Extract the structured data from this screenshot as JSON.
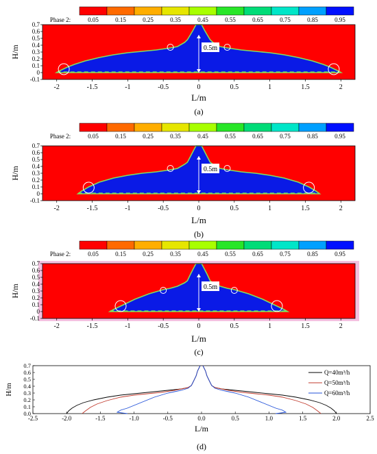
{
  "figure": {
    "captions": [
      "(a)",
      "(b)",
      "(c)",
      "(d)"
    ]
  },
  "colorbar": {
    "title": "Phase 2:",
    "labels": [
      "0.05",
      "0.15",
      "0.25",
      "0.35",
      "0.45",
      "0.55",
      "0.65",
      "0.75",
      "0.85",
      "0.95"
    ],
    "colors": [
      "#ff0000",
      "#ff6a00",
      "#ffae00",
      "#e6e600",
      "#a8ff00",
      "#28e628",
      "#00dc78",
      "#00e6c8",
      "#00a0ff",
      "#0010ff"
    ]
  },
  "colors": {
    "air": "#ff0000",
    "water": "#0a1ae6",
    "interface": "#7fe060",
    "circle": "#ffffff",
    "border_c": "#f4c0e0"
  },
  "annotation": "0.5m",
  "chart_data": [
    {
      "type": "heatmap",
      "caption": "(a)",
      "xlabel": "L/m",
      "ylabel": "H/m",
      "xlim": [
        -2.2,
        2.2
      ],
      "ylim": [
        -0.1,
        0.7
      ],
      "xticks": [
        "-2",
        "-1.5",
        "-1",
        "-0.5",
        "0",
        "0.5",
        "1",
        "1.5",
        "2"
      ],
      "xtick_values": [
        -2,
        -1.5,
        -1,
        -0.5,
        0,
        0.5,
        1,
        1.5,
        2
      ],
      "yticks": [
        "-0.1",
        "0",
        "0.1",
        "0.2",
        "0.3",
        "0.4",
        "0.5",
        "0.6",
        "0.7"
      ],
      "ytick_values": [
        -0.1,
        0,
        0.1,
        0.2,
        0.3,
        0.4,
        0.5,
        0.6,
        0.7
      ],
      "profile_x": [
        0.0,
        0.04,
        0.08,
        0.12,
        0.16,
        0.2,
        0.3,
        0.4,
        0.6,
        0.8,
        1.0,
        1.2,
        1.4,
        1.6,
        1.75,
        1.85,
        1.95,
        2.0
      ],
      "profile_h": [
        0.7,
        0.7,
        0.62,
        0.55,
        0.48,
        0.44,
        0.38,
        0.36,
        0.33,
        0.31,
        0.29,
        0.26,
        0.22,
        0.17,
        0.12,
        0.08,
        0.03,
        0.0
      ],
      "circles_x": [
        -1.9,
        -0.4,
        0.4,
        1.9
      ],
      "circles_h": [
        0.05,
        0.37,
        0.37,
        0.05
      ]
    },
    {
      "type": "heatmap",
      "caption": "(b)",
      "xlabel": "L/m",
      "ylabel": "H/m",
      "xlim": [
        -2.2,
        2.2
      ],
      "ylim": [
        -0.1,
        0.7
      ],
      "xticks": [
        "-2",
        "-1.5",
        "-1",
        "-0.5",
        "0",
        "0.5",
        "1",
        "1.5",
        "2"
      ],
      "xtick_values": [
        -2,
        -1.5,
        -1,
        -0.5,
        0,
        0.5,
        1,
        1.5,
        2
      ],
      "yticks": [
        "-0.1",
        "0",
        "0.1",
        "0.2",
        "0.3",
        "0.4",
        "0.5",
        "0.6",
        "0.7"
      ],
      "ytick_values": [
        -0.1,
        0,
        0.1,
        0.2,
        0.3,
        0.4,
        0.5,
        0.6,
        0.7
      ],
      "profile_x": [
        0.0,
        0.04,
        0.08,
        0.12,
        0.16,
        0.2,
        0.3,
        0.4,
        0.6,
        0.8,
        1.0,
        1.2,
        1.4,
        1.55,
        1.65,
        1.7
      ],
      "profile_h": [
        0.7,
        0.7,
        0.62,
        0.54,
        0.46,
        0.43,
        0.37,
        0.35,
        0.32,
        0.3,
        0.27,
        0.23,
        0.17,
        0.1,
        0.04,
        0.0
      ],
      "circles_x": [
        -1.55,
        -0.4,
        0.4,
        1.55
      ],
      "circles_h": [
        0.09,
        0.37,
        0.37,
        0.09
      ]
    },
    {
      "type": "heatmap",
      "caption": "(c)",
      "xlabel": "L/m",
      "ylabel": "H/m",
      "xlim": [
        -2.2,
        2.2
      ],
      "ylim": [
        -0.1,
        0.7
      ],
      "xticks": [
        "-2",
        "-1.5",
        "-1",
        "-0.5",
        "0",
        "0.5",
        "1",
        "1.5",
        "2"
      ],
      "xtick_values": [
        -2,
        -1.5,
        -1,
        -0.5,
        0,
        0.5,
        1,
        1.5,
        2
      ],
      "yticks": [
        "-0.1",
        "0",
        "0.1",
        "0.2",
        "0.3",
        "0.4",
        "0.5",
        "0.6",
        "0.7"
      ],
      "ytick_values": [
        -0.1,
        0,
        0.1,
        0.2,
        0.3,
        0.4,
        0.5,
        0.6,
        0.7
      ],
      "profile_x": [
        0.0,
        0.04,
        0.08,
        0.12,
        0.16,
        0.2,
        0.3,
        0.4,
        0.5,
        0.6,
        0.7,
        0.8,
        0.9,
        1.0,
        1.1,
        1.2,
        1.25
      ],
      "profile_h": [
        0.7,
        0.7,
        0.62,
        0.54,
        0.45,
        0.42,
        0.37,
        0.34,
        0.32,
        0.29,
        0.26,
        0.22,
        0.18,
        0.13,
        0.08,
        0.03,
        0.0
      ],
      "circles_x": [
        -1.1,
        -0.5,
        0.5,
        1.1
      ],
      "circles_h": [
        0.08,
        0.31,
        0.31,
        0.08
      ]
    },
    {
      "type": "line",
      "caption": "(d)",
      "xlabel": "L/m",
      "ylabel": "H/m",
      "xlim": [
        -2.5,
        2.5
      ],
      "ylim": [
        0,
        0.7
      ],
      "xticks": [
        "-2.5",
        "-2.0",
        "-1.5",
        "-1.0",
        "-0.5",
        "0.0",
        "0.5",
        "1.0",
        "1.5",
        "2.0",
        "2.5"
      ],
      "xtick_values": [
        -2.5,
        -2.0,
        -1.5,
        -1.0,
        -0.5,
        0.0,
        0.5,
        1.0,
        1.5,
        2.0,
        2.5
      ],
      "yticks": [
        "0.0",
        "0.1",
        "0.2",
        "0.3",
        "0.4",
        "0.5",
        "0.6",
        "0.7"
      ],
      "ytick_values": [
        0,
        0.1,
        0.2,
        0.3,
        0.4,
        0.5,
        0.6,
        0.7
      ],
      "series": [
        {
          "name": "Q=40m³/h",
          "color": "#000000",
          "x": [
            0.02,
            0.06,
            0.08,
            0.12,
            0.15,
            0.2,
            0.3,
            0.4,
            0.6,
            0.8,
            1.0,
            1.2,
            1.4,
            1.6,
            1.75,
            1.85,
            1.92,
            1.97,
            2.0
          ],
          "y": [
            0.7,
            0.62,
            0.55,
            0.47,
            0.41,
            0.38,
            0.36,
            0.35,
            0.33,
            0.31,
            0.29,
            0.27,
            0.24,
            0.2,
            0.16,
            0.12,
            0.08,
            0.04,
            0.0
          ]
        },
        {
          "name": "Q=50m³/h",
          "color": "#c0392b",
          "x": [
            0.02,
            0.06,
            0.08,
            0.12,
            0.15,
            0.2,
            0.3,
            0.4,
            0.6,
            0.8,
            1.0,
            1.2,
            1.4,
            1.55,
            1.65,
            1.72,
            1.77
          ],
          "y": [
            0.7,
            0.62,
            0.55,
            0.47,
            0.41,
            0.38,
            0.36,
            0.34,
            0.31,
            0.29,
            0.27,
            0.24,
            0.19,
            0.14,
            0.09,
            0.04,
            0.0
          ]
        },
        {
          "name": "Q=60m³/h",
          "color": "#1f4fd8",
          "x": [
            0.02,
            0.06,
            0.08,
            0.12,
            0.15,
            0.2,
            0.3,
            0.4,
            0.5,
            0.6,
            0.7,
            0.8,
            0.9,
            1.0,
            1.1,
            1.2,
            1.25,
            1.18,
            1.1
          ],
          "y": [
            0.7,
            0.62,
            0.55,
            0.47,
            0.41,
            0.37,
            0.34,
            0.32,
            0.3,
            0.27,
            0.24,
            0.2,
            0.16,
            0.12,
            0.08,
            0.05,
            0.02,
            0.01,
            0.0
          ]
        }
      ],
      "legend": "top-right"
    }
  ]
}
